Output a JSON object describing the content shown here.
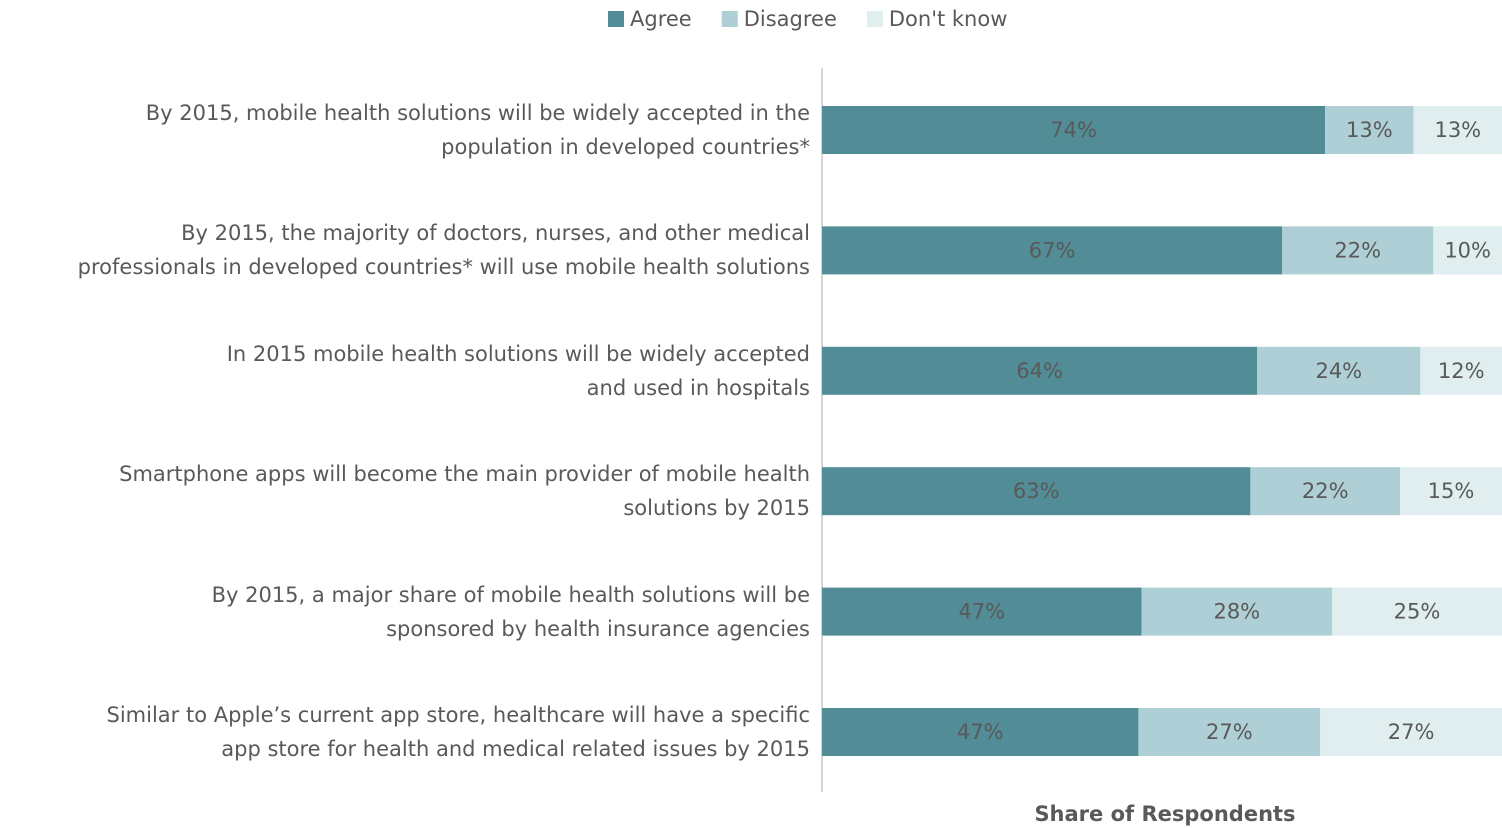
{
  "chart_data": {
    "type": "stacked-bar-horizontal",
    "x_label": "Share of Respondents",
    "categories": [
      "By 2015, mobile health solutions will be widely accepted in the\npopulation in developed countries*",
      "By 2015, the majority of doctors, nurses, and other medical\nprofessionals in developed countries* will use mobile health solutions",
      "In 2015 mobile health solutions will be widely accepted\nand used in hospitals",
      "Smartphone apps will become the main provider of mobile health\nsolutions by 2015",
      "By 2015, a major share of mobile health solutions will be\nsponsored by health insurance agencies",
      "Similar to Apple’s current app store, healthcare will have a specific\napp store for health and medical related issues by 2015"
    ],
    "series": [
      {
        "name": "Agree",
        "color": "#528c96",
        "values": [
          74,
          67,
          64,
          63,
          47,
          47
        ],
        "value_labels": [
          "74%",
          "67%",
          "64%",
          "63%",
          "47%",
          "47%"
        ]
      },
      {
        "name": "Disagree",
        "color": "#aecfd5",
        "values": [
          13,
          22,
          24,
          22,
          28,
          27
        ],
        "value_labels": [
          "13%",
          "22%",
          "24%",
          "22%",
          "28%",
          "27%"
        ]
      },
      {
        "name": "Don't know",
        "color": "#e0eef0",
        "values": [
          13,
          10,
          12,
          15,
          25,
          27
        ],
        "value_labels": [
          "13%",
          "10%",
          "12%",
          "15%",
          "25%",
          "27%"
        ]
      }
    ],
    "legend": "top"
  }
}
